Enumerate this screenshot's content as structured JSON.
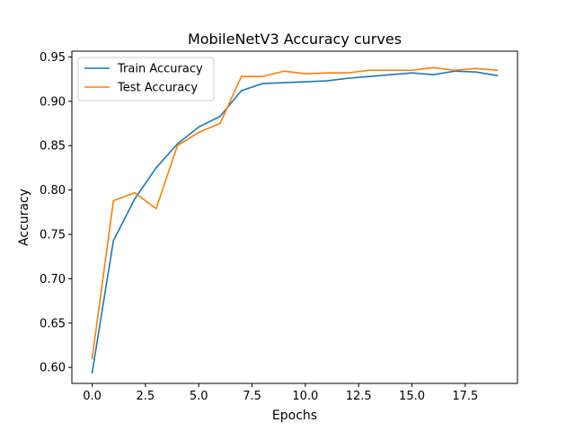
{
  "chart_data": {
    "type": "line",
    "title": "MobileNetV3 Accuracy curves",
    "xlabel": "Epochs",
    "ylabel": "Accuracy",
    "xlim": [
      -0.95,
      19.95
    ],
    "ylim": [
      0.582,
      0.9565
    ],
    "x_ticks": [
      0.0,
      2.5,
      5.0,
      7.5,
      10.0,
      12.5,
      15.0,
      17.5
    ],
    "x_tick_labels": [
      "0.0",
      "2.5",
      "5.0",
      "7.5",
      "10.0",
      "12.5",
      "15.0",
      "17.5"
    ],
    "y_ticks": [
      0.6,
      0.65,
      0.7,
      0.75,
      0.8,
      0.85,
      0.9,
      0.95
    ],
    "y_tick_labels": [
      "0.60",
      "0.65",
      "0.70",
      "0.75",
      "0.80",
      "0.85",
      "0.90",
      "0.95"
    ],
    "grid": false,
    "legend_position": "top-left",
    "x": [
      0,
      1,
      2,
      3,
      4,
      5,
      6,
      7,
      8,
      9,
      10,
      11,
      12,
      13,
      14,
      15,
      16,
      17,
      18,
      19
    ],
    "series": [
      {
        "name": "Train Accuracy",
        "color": "#1f77b4",
        "values": [
          0.594,
          0.743,
          0.79,
          0.825,
          0.852,
          0.871,
          0.883,
          0.912,
          0.92,
          0.921,
          0.922,
          0.923,
          0.926,
          0.928,
          0.93,
          0.932,
          0.93,
          0.934,
          0.933,
          0.929
        ]
      },
      {
        "name": "Test Accuracy",
        "color": "#ff7f0e",
        "values": [
          0.61,
          0.788,
          0.797,
          0.779,
          0.85,
          0.865,
          0.875,
          0.928,
          0.928,
          0.934,
          0.931,
          0.932,
          0.932,
          0.935,
          0.935,
          0.935,
          0.938,
          0.935,
          0.937,
          0.935
        ]
      }
    ]
  }
}
